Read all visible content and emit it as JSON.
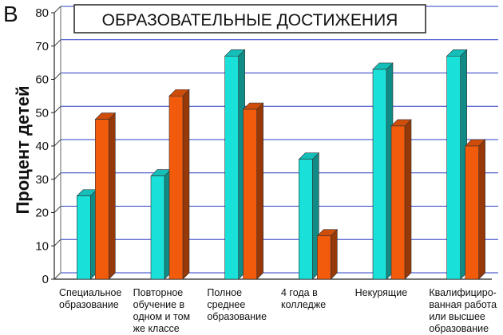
{
  "panel_letter": "В",
  "chart_data": {
    "type": "bar",
    "title": "ОБРАЗОВАТЕЛЬНЫЕ ДОСТИЖЕНИЯ",
    "xlabel": "",
    "ylabel": "Процент детей",
    "ylim": [
      0,
      80
    ],
    "yticks": [
      0,
      10,
      20,
      30,
      40,
      50,
      60,
      70,
      80
    ],
    "grid": true,
    "categories": [
      [
        "Специальное",
        "образование"
      ],
      [
        "Повторное",
        "обучение в",
        "одном и том",
        "же классе"
      ],
      [
        "Полное",
        "среднее",
        "образование"
      ],
      [
        "4 года в",
        "колледже"
      ],
      [
        "Некурящие"
      ],
      [
        "Квалифициро-",
        "ванная работа",
        "или высшее",
        "образование"
      ]
    ],
    "series": [
      {
        "values": [
          25,
          31,
          67,
          36,
          63,
          67
        ],
        "color": "#19e0d8"
      },
      {
        "values": [
          48,
          55,
          51,
          13,
          46,
          40
        ],
        "color": "#f25a0c"
      }
    ]
  }
}
